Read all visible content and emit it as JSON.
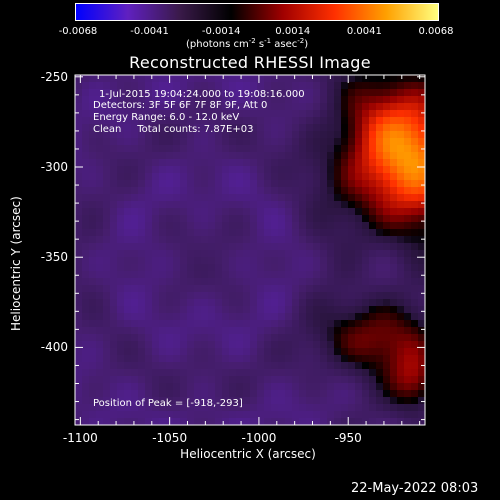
{
  "colorbar": {
    "ticks": [
      "-0.0068",
      "-0.0041",
      "-0.0014",
      "0.0014",
      "0.0041",
      "0.0068"
    ],
    "units_parts": [
      "(photons cm",
      "-2",
      " s",
      "-1",
      " asec",
      "-2",
      ")"
    ],
    "colors": [
      "#0000ff",
      "#6020c0",
      "#3a1a4a",
      "#000000",
      "#a00000",
      "#ff3000",
      "#ffa000",
      "#ffff80"
    ]
  },
  "chart_data": {
    "type": "heatmap",
    "title": "Reconstructed RHESSI Image",
    "xlabel": "Heliocentric X (arcsec)",
    "ylabel": "Heliocentric Y (arcsec)",
    "xlim": [
      -1103,
      -907
    ],
    "ylim": [
      -443,
      -249
    ],
    "xticks": [
      "-1100",
      "-1050",
      "-1000",
      "-950"
    ],
    "xtick_values": [
      -1100,
      -1050,
      -1000,
      -950
    ],
    "yticks": [
      "-250",
      "-300",
      "-350",
      "-400"
    ],
    "ytick_values": [
      -250,
      -300,
      -350,
      -400
    ],
    "colorbar_range": [
      -0.0068,
      0.0068
    ],
    "peak": [
      -918,
      -293
    ],
    "annotations": [
      "1-Jul-2015 19:04:24.000 to 19:08:16.000",
      "Detectors: 3F 5F 6F 7F 8F 9F, Att 0",
      "Energy Range: 6.0 - 12.0 keV",
      "Clean     Total counts: 7.87E+03"
    ],
    "peak_label": "Position of Peak = [-918,-293]"
  },
  "footer": {
    "date": "22-May-2022 08:03"
  }
}
